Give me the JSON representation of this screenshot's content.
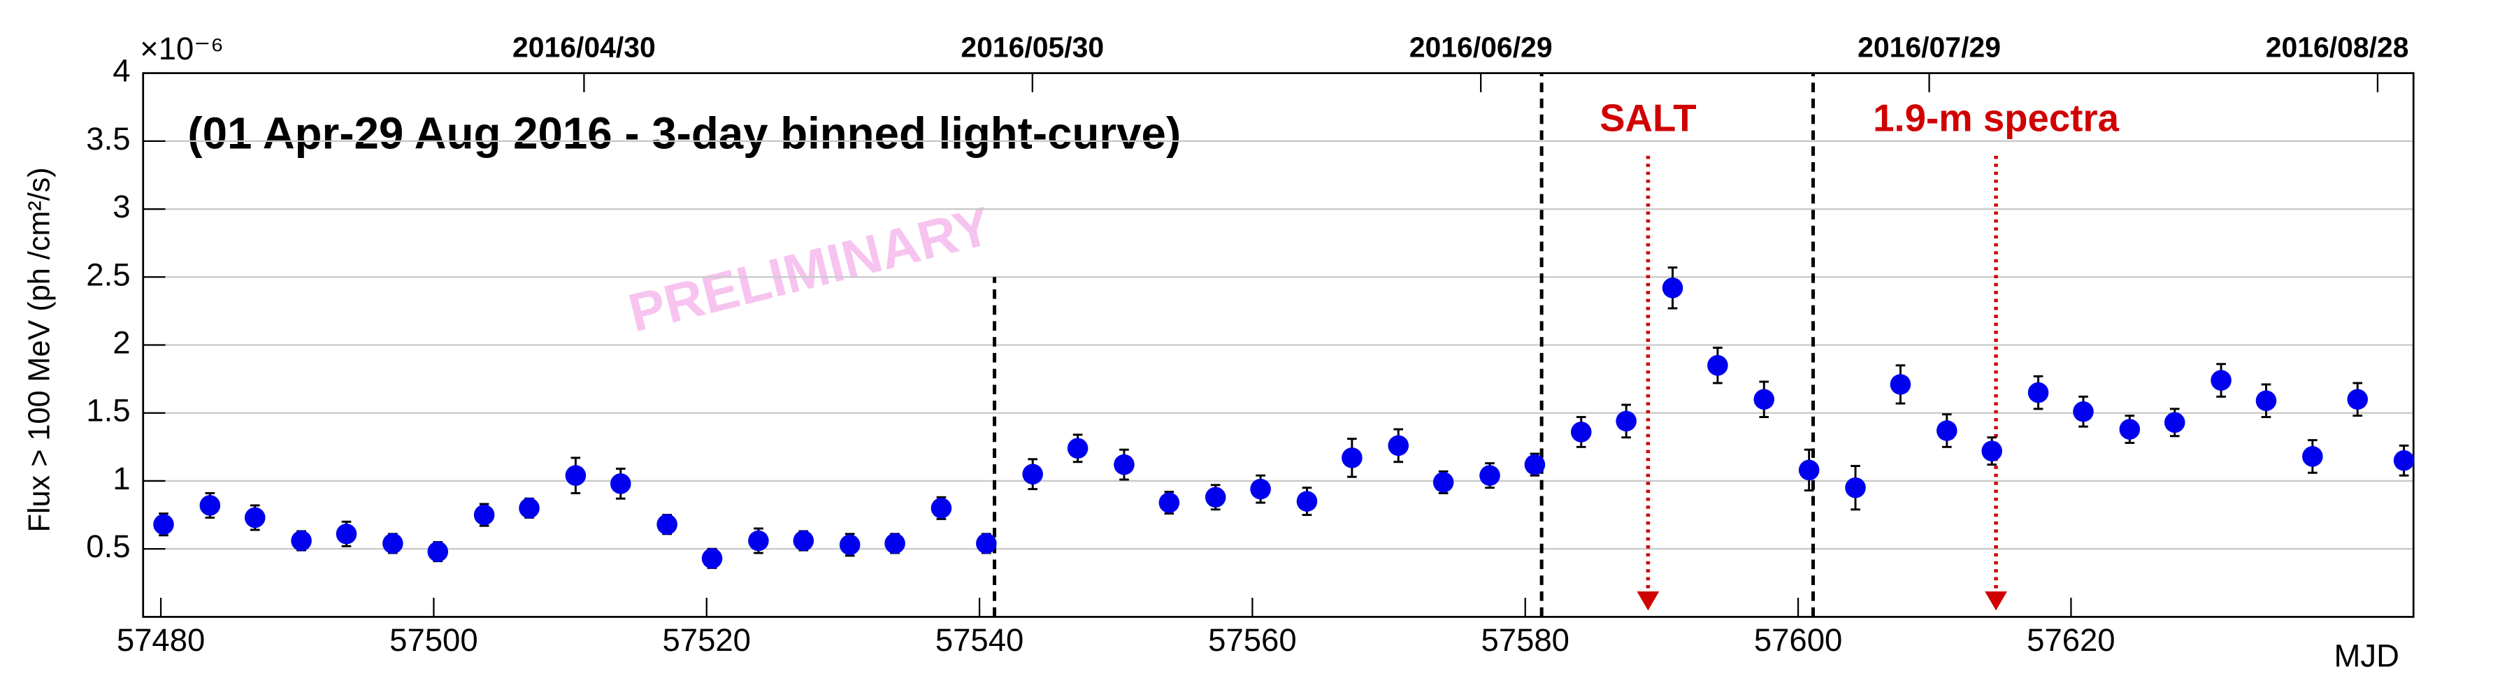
{
  "chart_data": {
    "type": "scatter",
    "title": "(01 Apr-29 Aug 2016 - 3-day binned light-curve)",
    "watermark": "PRELIMINARY",
    "y_label": "Flux > 100 MeV (ph /cm²/s)",
    "y_exponent": "×10⁻⁶",
    "x_label": "MJD",
    "xlim": [
      57478.7,
      57645.1
    ],
    "xticks": [
      57480,
      57500,
      57520,
      57540,
      57560,
      57580,
      57600,
      57620
    ],
    "x2lim": [
      57478.5,
      57630.4
    ],
    "x2ticks": [
      {
        "value": 57508,
        "label": "2016/04/30"
      },
      {
        "value": 57538,
        "label": "2016/05/30"
      },
      {
        "value": 57568,
        "label": "2016/06/29"
      },
      {
        "value": 57598,
        "label": "2016/07/29"
      },
      {
        "value": 57628,
        "label": "2016/08/28"
      }
    ],
    "ylim": [
      0,
      4
    ],
    "yticks": [
      0.5,
      1,
      1.5,
      2,
      2.5,
      3,
      3.5,
      4
    ],
    "grid": true,
    "color": "#0000ee",
    "x": [
      57480.2,
      57483.6,
      57486.9,
      57490.3,
      57493.6,
      57497.0,
      57500.3,
      57503.7,
      57507.0,
      57510.4,
      57513.7,
      57517.1,
      57520.4,
      57523.8,
      57527.1,
      57530.5,
      57533.8,
      57537.2,
      57540.5,
      57543.9,
      57547.2,
      57550.6,
      57553.9,
      57557.3,
      57560.6,
      57564.0,
      57567.3,
      57570.7,
      57574.0,
      57577.4,
      57580.7,
      57584.1,
      57587.4,
      57590.8,
      57594.1,
      57597.5,
      57600.8,
      57604.2,
      57607.5,
      57610.9,
      57614.2,
      57617.6,
      57620.9,
      57624.3,
      57627.6,
      57631.0,
      57634.3,
      57637.7,
      57641.0,
      57644.4
    ],
    "values": [
      0.68,
      0.82,
      0.73,
      0.56,
      0.61,
      0.54,
      0.48,
      0.75,
      0.8,
      1.04,
      0.98,
      0.68,
      0.43,
      0.56,
      0.56,
      0.53,
      0.54,
      0.8,
      0.54,
      1.05,
      1.24,
      1.12,
      0.84,
      0.88,
      0.94,
      0.85,
      1.17,
      1.26,
      0.99,
      1.04,
      1.12,
      1.36,
      1.44,
      2.42,
      1.85,
      1.6,
      1.08,
      0.95,
      1.71,
      1.37,
      1.22,
      1.65,
      1.51,
      1.38,
      1.43,
      1.74,
      1.59,
      1.18,
      1.6,
      1.15
    ],
    "errors": [
      0.08,
      0.09,
      0.09,
      0.07,
      0.09,
      0.07,
      0.07,
      0.08,
      0.07,
      0.13,
      0.11,
      0.07,
      0.07,
      0.09,
      0.07,
      0.08,
      0.07,
      0.08,
      0.07,
      0.11,
      0.1,
      0.11,
      0.08,
      0.09,
      0.1,
      0.1,
      0.14,
      0.12,
      0.08,
      0.09,
      0.08,
      0.11,
      0.12,
      0.15,
      0.13,
      0.13,
      0.15,
      0.16,
      0.14,
      0.12,
      0.1,
      0.12,
      0.11,
      0.1,
      0.1,
      0.12,
      0.12,
      0.12,
      0.12,
      0.11
    ],
    "vlines": [
      {
        "x": 57541.1,
        "top": 2.5
      },
      {
        "x": 57581.2,
        "top": 4
      },
      {
        "x": 57601.1,
        "top": 4
      }
    ],
    "annotations": [
      {
        "text": "SALT",
        "x": 57589.0
      },
      {
        "text": "1.9-m spectra",
        "x": 57614.5
      }
    ],
    "annotation_color": "#d00000"
  }
}
